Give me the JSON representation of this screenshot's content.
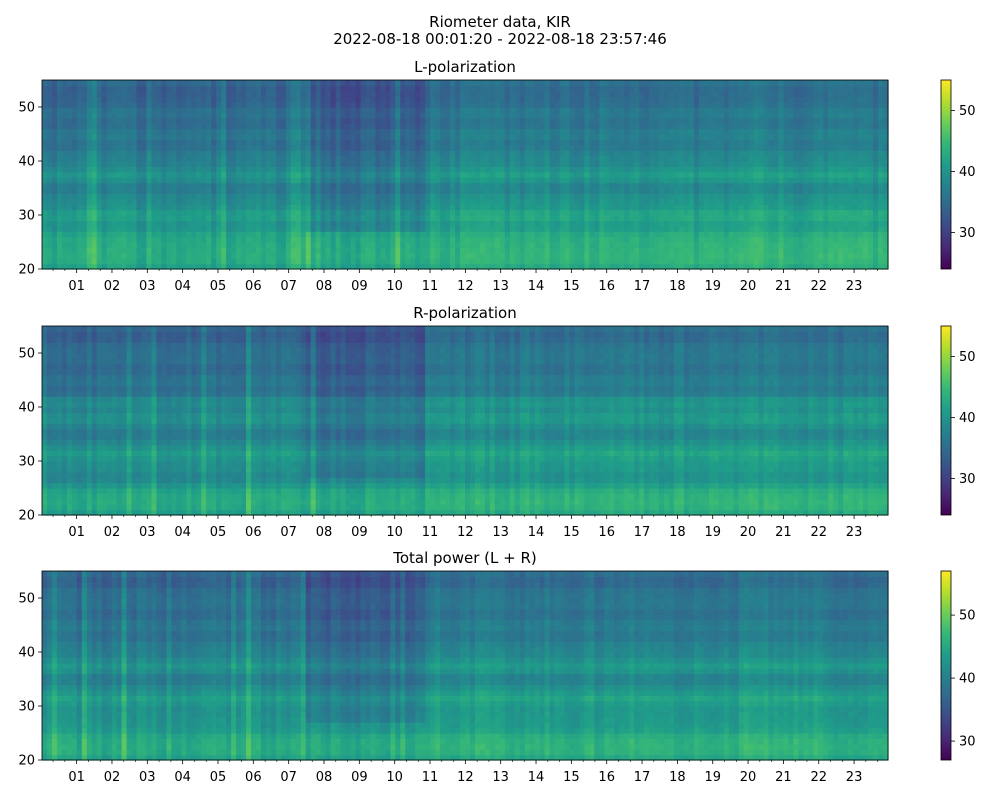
{
  "figure": {
    "title_line1": "Riometer data, KIR",
    "title_line2": "2022-08-18 00:01:20 - 2022-08-18 23:57:46"
  },
  "colors": {
    "colormap": "viridis",
    "viridis_stops": [
      "#440154",
      "#482878",
      "#3e4989",
      "#31688e",
      "#26828e",
      "#1f9e89",
      "#35b779",
      "#6ece58",
      "#b5de2b",
      "#fde725"
    ]
  },
  "chart_data": [
    {
      "type": "heatmap",
      "title": "L-polarization",
      "xlabel": "",
      "ylabel": "",
      "x_tick_labels": [
        "01",
        "02",
        "03",
        "04",
        "05",
        "06",
        "07",
        "08",
        "09",
        "10",
        "11",
        "12",
        "13",
        "14",
        "15",
        "16",
        "17",
        "18",
        "19",
        "20",
        "21",
        "22",
        "23"
      ],
      "x_range_hours": [
        0.02,
        23.96
      ],
      "ylim": [
        20,
        55
      ],
      "y_ticks": [
        20,
        30,
        40,
        50
      ],
      "colorbar_range": [
        24,
        55
      ],
      "colorbar_ticks": [
        30,
        40,
        50
      ],
      "bright_bands_y": [
        22,
        24,
        26,
        30,
        37.5
      ],
      "dark_bands_y": [
        35,
        43,
        47,
        51,
        53
      ],
      "quiet_period_hours": [
        7.5,
        10.8
      ],
      "disturbed_period_hours": [
        10.8,
        24
      ]
    },
    {
      "type": "heatmap",
      "title": "R-polarization",
      "xlabel": "",
      "ylabel": "",
      "x_tick_labels": [
        "01",
        "02",
        "03",
        "04",
        "05",
        "06",
        "07",
        "08",
        "09",
        "10",
        "11",
        "12",
        "13",
        "14",
        "15",
        "16",
        "17",
        "18",
        "19",
        "20",
        "21",
        "22",
        "23"
      ],
      "x_range_hours": [
        0.02,
        23.96
      ],
      "ylim": [
        20,
        55
      ],
      "y_ticks": [
        20,
        30,
        40,
        50
      ],
      "colorbar_range": [
        24,
        55
      ],
      "colorbar_ticks": [
        30,
        40,
        50
      ],
      "bright_bands_y": [
        22,
        24,
        31.5,
        38,
        41
      ],
      "dark_bands_y": [
        27,
        35,
        43,
        47,
        53
      ],
      "quiet_period_hours": [
        7.5,
        10.8
      ],
      "disturbed_period_hours": [
        10.8,
        24
      ]
    },
    {
      "type": "heatmap",
      "title": "Total power (L + R)",
      "xlabel": "",
      "ylabel": "",
      "x_tick_labels": [
        "01",
        "02",
        "03",
        "04",
        "05",
        "06",
        "07",
        "08",
        "09",
        "10",
        "11",
        "12",
        "13",
        "14",
        "15",
        "16",
        "17",
        "18",
        "19",
        "20",
        "21",
        "22",
        "23"
      ],
      "x_range_hours": [
        0.02,
        23.96
      ],
      "ylim": [
        20,
        55
      ],
      "y_ticks": [
        20,
        30,
        40,
        50
      ],
      "colorbar_range": [
        27,
        57
      ],
      "colorbar_ticks": [
        30,
        40,
        50
      ],
      "bright_bands_y": [
        22,
        24,
        31.5,
        37.5
      ],
      "dark_bands_y": [
        35,
        43,
        47,
        53
      ],
      "quiet_period_hours": [
        7.5,
        10.8
      ],
      "disturbed_period_hours": [
        10.8,
        24
      ]
    }
  ]
}
